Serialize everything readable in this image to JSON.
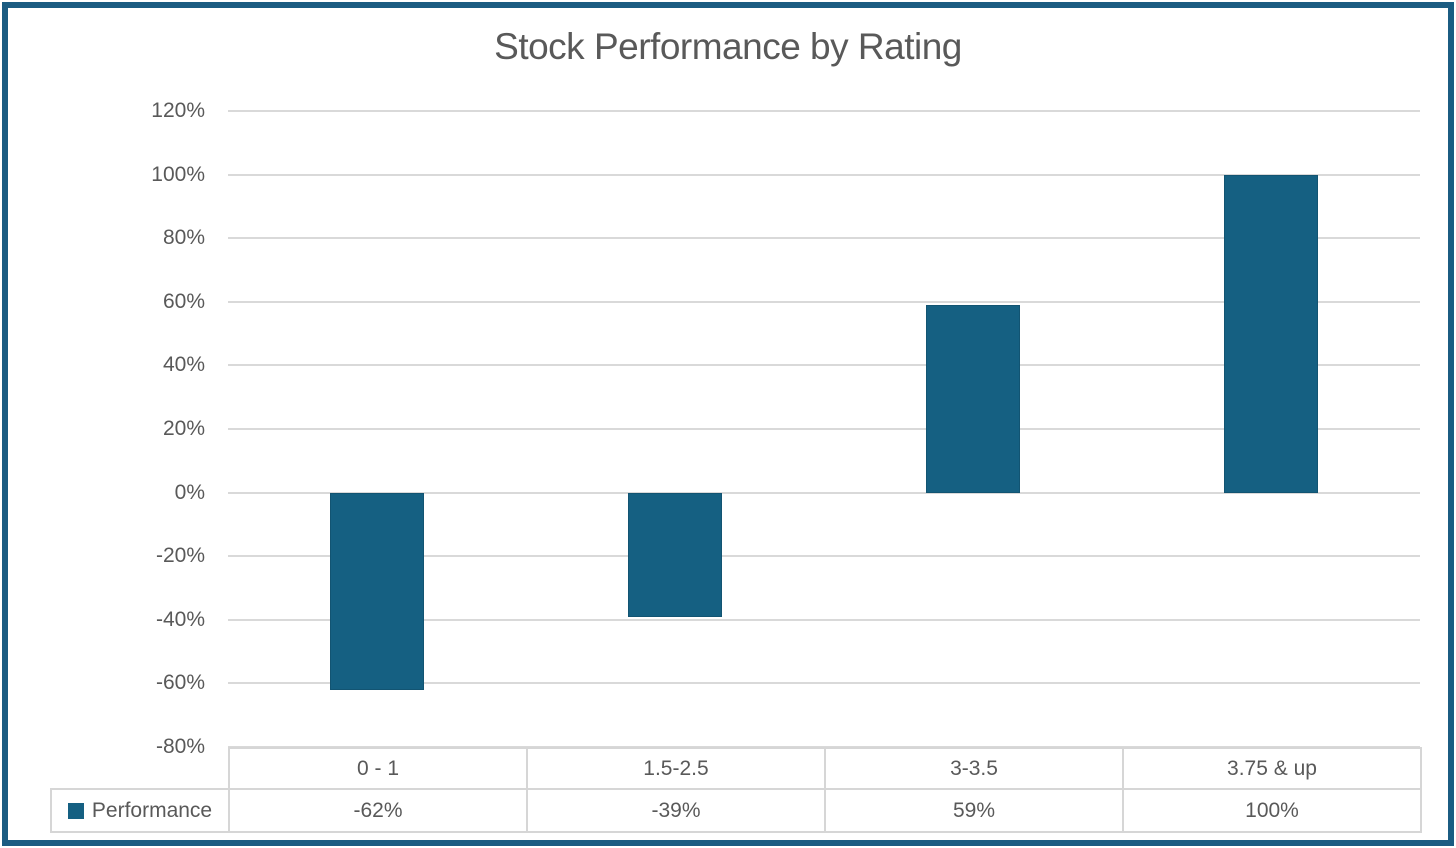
{
  "frame": {
    "border_color": "#1B5C82",
    "background": "#FFFFFF"
  },
  "chart_data": {
    "type": "bar",
    "title": "Stock Performance by Rating",
    "categories": [
      "0 - 1",
      "1.5-2.5",
      "3-3.5",
      "3.75 & up"
    ],
    "series": [
      {
        "name": "Performance",
        "values": [
          -62,
          -39,
          59,
          100
        ]
      }
    ],
    "value_format": "percent",
    "ylim": [
      -80,
      120
    ],
    "y_tick_step": 20,
    "y_tick_labels": [
      "120%",
      "100%",
      "80%",
      "60%",
      "40%",
      "20%",
      "0%",
      "-20%",
      "-40%",
      "-60%",
      "-80%"
    ],
    "grid": true,
    "legend_position": "data-table-left",
    "data_table_values": [
      "-62%",
      "-39%",
      "59%",
      "100%"
    ],
    "colors": {
      "bar": "#156082",
      "gridline": "#D9D9D9",
      "table_border": "#D6D6D6",
      "text": "#595959",
      "title_text": "#595959"
    }
  }
}
